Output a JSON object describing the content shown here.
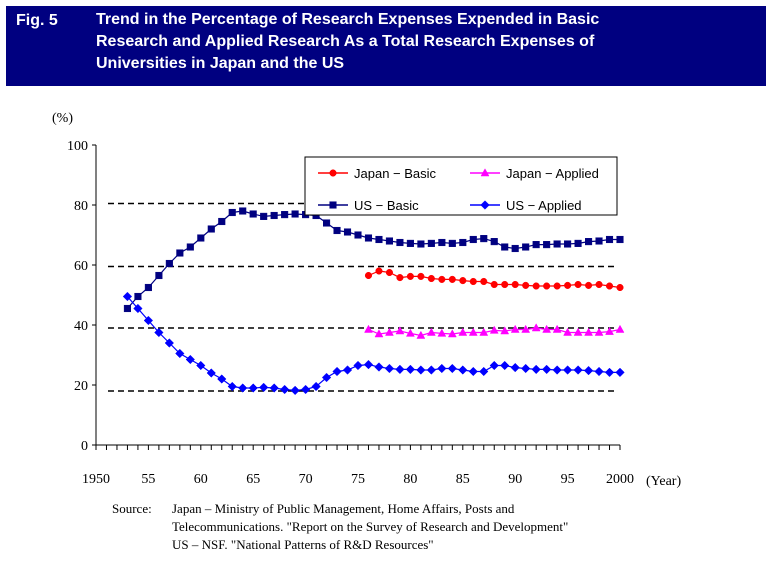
{
  "figure": {
    "label": "Fig. 5",
    "title_lines": [
      "Trend in the Percentage of Research Expenses Expended in Basic",
      "Research and Applied Research As a Total Research Expenses of",
      "Universities in Japan and the US"
    ]
  },
  "source": {
    "label": "Source:",
    "lines": [
      "Japan – Ministry of Public Management, Home Affairs, Posts and",
      "Telecommunications. \"Report on the Survey of Research and Development\"",
      "US – NSF. \"National Patterns of R&D Resources\""
    ]
  },
  "chart_data": {
    "type": "line",
    "title": "",
    "ylabel": "(%)",
    "xlabel": "(Year)",
    "xlim": [
      1950,
      2000
    ],
    "ylim": [
      0,
      100
    ],
    "x_tick_labels": [
      "1950",
      "55",
      "60",
      "65",
      "70",
      "75",
      "80",
      "85",
      "90",
      "95",
      "2000"
    ],
    "x_tick_values": [
      1950,
      1955,
      1960,
      1965,
      1970,
      1975,
      1980,
      1985,
      1990,
      1995,
      2000
    ],
    "y_ticks": [
      0,
      20,
      40,
      60,
      80,
      100
    ],
    "dashed_reference_lines": [
      18,
      39,
      59.5,
      80.5
    ],
    "legend_position": "top-right",
    "series": [
      {
        "name": "Japan − Basic",
        "color": "#ff0000",
        "marker": "circle",
        "x": [
          1976,
          1977,
          1978,
          1979,
          1980,
          1981,
          1982,
          1983,
          1984,
          1985,
          1986,
          1987,
          1988,
          1989,
          1990,
          1991,
          1992,
          1993,
          1994,
          1995,
          1996,
          1997,
          1998,
          1999,
          2000
        ],
        "values": [
          56.5,
          58,
          57.5,
          55.8,
          56.2,
          56.2,
          55.5,
          55.2,
          55.2,
          54.8,
          54.5,
          54.5,
          53.5,
          53.5,
          53.5,
          53.2,
          53,
          53,
          53,
          53.2,
          53.5,
          53.2,
          53.5,
          53,
          52.5
        ]
      },
      {
        "name": "Japan − Applied",
        "color": "#ff00ff",
        "marker": "triangle",
        "x": [
          1976,
          1977,
          1978,
          1979,
          1980,
          1981,
          1982,
          1983,
          1984,
          1985,
          1986,
          1987,
          1988,
          1989,
          1990,
          1991,
          1992,
          1993,
          1994,
          1995,
          1996,
          1997,
          1998,
          1999,
          2000
        ],
        "values": [
          38.5,
          37,
          37.5,
          38,
          37.2,
          36.5,
          37.5,
          37.2,
          37,
          37.5,
          37.5,
          37.5,
          38.2,
          38,
          38.5,
          38.5,
          39,
          38.5,
          38.5,
          37.5,
          37.5,
          37.5,
          37.5,
          37.8,
          38.5
        ]
      },
      {
        "name": "US − Basic",
        "color": "#000080",
        "marker": "square",
        "x": [
          1953,
          1954,
          1955,
          1956,
          1957,
          1958,
          1959,
          1960,
          1961,
          1962,
          1963,
          1964,
          1965,
          1966,
          1967,
          1968,
          1969,
          1970,
          1971,
          1972,
          1973,
          1974,
          1975,
          1976,
          1977,
          1978,
          1979,
          1980,
          1981,
          1982,
          1983,
          1984,
          1985,
          1986,
          1987,
          1988,
          1989,
          1990,
          1991,
          1992,
          1993,
          1994,
          1995,
          1996,
          1997,
          1998,
          1999,
          2000
        ],
        "values": [
          45.5,
          49.5,
          52.5,
          56.5,
          60.5,
          64,
          66,
          69,
          72,
          74.5,
          77.5,
          78,
          77,
          76.2,
          76.5,
          76.8,
          77,
          76.8,
          76.5,
          74,
          71.5,
          71,
          70,
          69,
          68.5,
          68,
          67.5,
          67.2,
          67,
          67.2,
          67.5,
          67.2,
          67.5,
          68.5,
          68.8,
          67.8,
          66,
          65.5,
          66,
          66.8,
          66.8,
          67,
          67,
          67.2,
          67.8,
          68,
          68.5,
          68.5
        ]
      },
      {
        "name": "US − Applied",
        "color": "#0000ff",
        "marker": "diamond",
        "x": [
          1953,
          1954,
          1955,
          1956,
          1957,
          1958,
          1959,
          1960,
          1961,
          1962,
          1963,
          1964,
          1965,
          1966,
          1967,
          1968,
          1969,
          1970,
          1971,
          1972,
          1973,
          1974,
          1975,
          1976,
          1977,
          1978,
          1979,
          1980,
          1981,
          1982,
          1983,
          1984,
          1985,
          1986,
          1987,
          1988,
          1989,
          1990,
          1991,
          1992,
          1993,
          1994,
          1995,
          1996,
          1997,
          1998,
          1999,
          2000
        ],
        "values": [
          49.5,
          45.5,
          41.5,
          37.5,
          34,
          30.5,
          28.5,
          26.5,
          24,
          22,
          19.5,
          19,
          19,
          19.2,
          19,
          18.5,
          18.2,
          18.5,
          19.5,
          22.5,
          24.5,
          25,
          26.5,
          26.8,
          26,
          25.5,
          25.2,
          25.2,
          25,
          25,
          25.5,
          25.5,
          25,
          24.5,
          24.5,
          26.5,
          26.5,
          25.8,
          25.5,
          25.2,
          25.2,
          25,
          25,
          25,
          24.8,
          24.5,
          24.2,
          24.2
        ]
      }
    ]
  }
}
